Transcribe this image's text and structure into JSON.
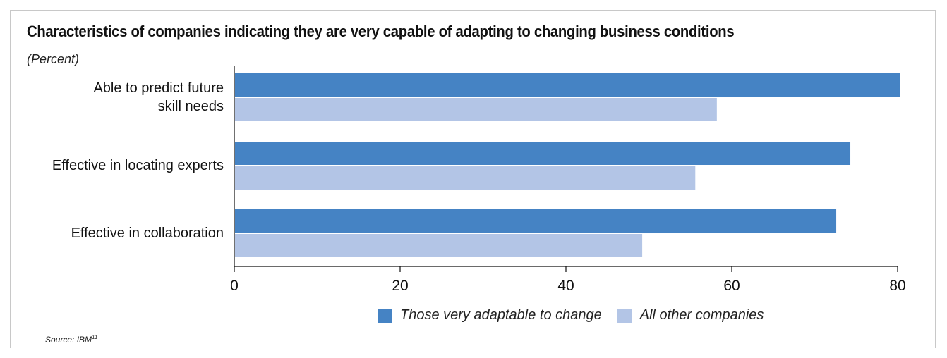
{
  "title": "Characteristics of companies indicating they are very capable of adapting to changing business conditions",
  "subtitle": "(Percent)",
  "source_prefix": "Source: IBM",
  "source_sup": "11",
  "colors": {
    "series_primary": "#4583c4",
    "series_secondary": "#b3c5e6",
    "axis": "#111111"
  },
  "chart_data": {
    "type": "bar",
    "orientation": "horizontal",
    "categories": [
      [
        "Able to predict future",
        "skill needs"
      ],
      [
        "Effective in locating experts"
      ],
      [
        "Effective in collaboration"
      ]
    ],
    "series": [
      {
        "name": "Those very adaptable to change",
        "values": [
          80.3,
          74.3,
          72.6
        ]
      },
      {
        "name": "All other companies",
        "values": [
          58.2,
          55.6,
          49.2
        ]
      }
    ],
    "xlim": [
      0,
      80
    ],
    "xticks": [
      "0",
      "20",
      "40",
      "60",
      "80"
    ],
    "grid": false,
    "legend_position": "bottom"
  }
}
